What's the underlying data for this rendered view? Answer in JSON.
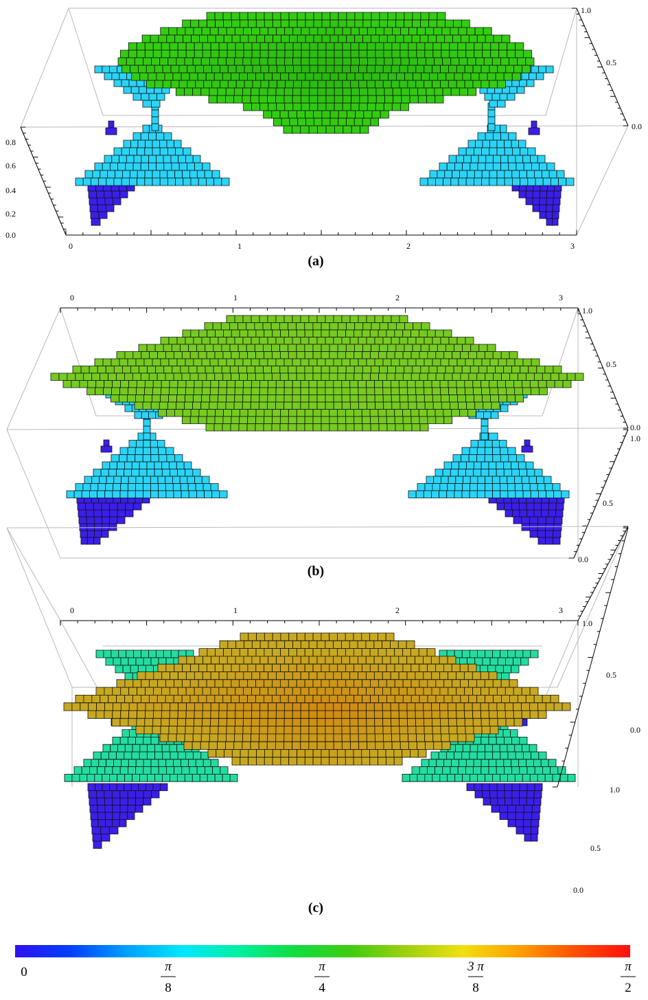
{
  "panels": [
    {
      "caption": "(a)",
      "x_ticks": [
        "0",
        "1",
        "2",
        "3"
      ],
      "right_ticks": [
        "1.0",
        "0.5",
        "0.0"
      ],
      "left_ticks": [
        "0.8",
        "0.6",
        "0.4",
        "0.2",
        "0.0"
      ],
      "colors": {
        "center": "#33cc11",
        "wing": "#2ad4f7",
        "base": "#3a1fe8"
      }
    },
    {
      "caption": "(b)",
      "x_ticks": [
        "0",
        "1",
        "2",
        "3"
      ],
      "right_upper_ticks": [
        "1.0",
        "0.5",
        "0.0"
      ],
      "right_lower_ticks": [
        "1.0",
        "0.5",
        "0.0"
      ],
      "colors": {
        "center": "#77cc22",
        "wing": "#2ad4f7",
        "base": "#3a1fe8"
      }
    },
    {
      "caption": "(c)",
      "x_ticks": [
        "0",
        "1",
        "2",
        "3"
      ],
      "right_upper_ticks": [
        "1.0",
        "0.5",
        "0.0"
      ],
      "right_lower_ticks": [
        "1.0",
        "0.5",
        "0.0"
      ],
      "colors": {
        "center": "#c8a820",
        "center_peak": "#d08a10",
        "wing": "#22dda0",
        "base": "#3a1fe8"
      }
    }
  ],
  "colorbar": {
    "colors": [
      "#3010ee",
      "#0040ff",
      "#00a0ff",
      "#00e8ff",
      "#00f0a0",
      "#10dd40",
      "#40cc10",
      "#a0d010",
      "#f0e010",
      "#ffa000",
      "#ff5000",
      "#ff1010"
    ],
    "labels": [
      {
        "num": "0",
        "den": ""
      },
      {
        "num": "π",
        "den": "8"
      },
      {
        "num": "π",
        "den": "4"
      },
      {
        "num": "3 π",
        "den": "8"
      },
      {
        "num": "π",
        "den": "2"
      }
    ]
  }
}
